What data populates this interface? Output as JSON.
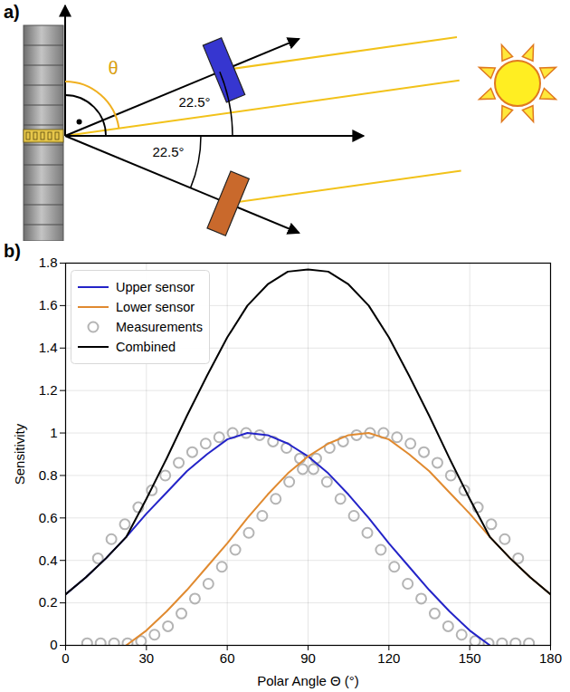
{
  "diagram": {
    "panel": "a)",
    "theta_label": "θ",
    "sensors": [
      {
        "angle": 22.5,
        "label": "22.5°",
        "color": "#3636d0"
      },
      {
        "angle": 22.5,
        "label": "22.5°",
        "color": "#c9692c"
      }
    ]
  },
  "chart_data": {
    "type": "line",
    "panel": "b)",
    "x_label": "Polar Angle Θ (°)",
    "y_label": "Sensitivity",
    "xlim": [
      0,
      180
    ],
    "xticks": [
      0,
      30,
      60,
      90,
      120,
      150,
      180
    ],
    "ylim": [
      0,
      1.8
    ],
    "yticks": [
      0,
      0.2,
      0.4,
      0.6,
      0.8,
      1,
      1.2,
      1.4,
      1.6,
      1.8
    ],
    "grid": true,
    "legend": "upper left",
    "series": [
      {
        "name": "Upper sensor",
        "type": "line",
        "color": "#2424c8",
        "line_style": "solid",
        "x": [
          0,
          7.5,
          15,
          22.5,
          30,
          37.5,
          45,
          52.5,
          60,
          67.5,
          75,
          82.5,
          90,
          97.5,
          105,
          112.5,
          120,
          127.5,
          135,
          142.5,
          150,
          157.5
        ],
        "values": [
          0.24,
          0.32,
          0.41,
          0.51,
          0.62,
          0.72,
          0.82,
          0.9,
          0.97,
          1,
          0.99,
          0.95,
          0.89,
          0.81,
          0.71,
          0.6,
          0.48,
          0.37,
          0.26,
          0.16,
          0.07,
          0
        ]
      },
      {
        "name": "Lower sensor",
        "type": "line",
        "color": "#e08a30",
        "line_style": "solid",
        "x": [
          22.5,
          30,
          37.5,
          45,
          52.5,
          60,
          67.5,
          75,
          82.5,
          90,
          97.5,
          105,
          112.5,
          120,
          127.5,
          135,
          142.5,
          150,
          157.5,
          165,
          172.5,
          180
        ],
        "values": [
          0,
          0.07,
          0.16,
          0.26,
          0.37,
          0.48,
          0.6,
          0.71,
          0.81,
          0.89,
          0.95,
          0.99,
          1,
          0.97,
          0.9,
          0.82,
          0.72,
          0.62,
          0.51,
          0.41,
          0.32,
          0.24
        ]
      },
      {
        "name": "Measurements",
        "type": "scatter",
        "color": "#b4b4b4",
        "marker": "circle",
        "x": [
          12,
          17,
          22,
          27,
          32,
          37,
          42,
          47,
          52,
          57,
          62,
          67,
          72,
          77,
          82,
          87,
          92,
          97,
          102,
          107,
          112,
          117,
          122,
          127,
          132,
          137,
          142,
          147,
          152,
          157,
          162,
          167,
          172,
          8,
          13,
          18,
          23,
          28,
          33,
          38,
          43,
          48,
          53,
          58,
          63,
          68,
          73,
          78,
          83,
          88,
          93,
          98,
          103,
          108,
          113,
          118,
          123,
          128,
          133,
          138,
          143,
          148,
          153,
          158,
          163,
          168
        ],
        "values": [
          0.41,
          0.5,
          0.57,
          0.65,
          0.73,
          0.8,
          0.86,
          0.91,
          0.95,
          0.98,
          1,
          1,
          0.99,
          0.96,
          0.93,
          0.88,
          0.83,
          0.77,
          0.69,
          0.61,
          0.53,
          0.45,
          0.37,
          0.29,
          0.22,
          0.15,
          0.09,
          0.05,
          0.02,
          0.01,
          0.01,
          0.01,
          0.01,
          0.01,
          0.01,
          0.01,
          0.01,
          0.02,
          0.05,
          0.09,
          0.15,
          0.22,
          0.29,
          0.37,
          0.45,
          0.53,
          0.61,
          0.69,
          0.77,
          0.83,
          0.88,
          0.93,
          0.96,
          0.99,
          1,
          1,
          0.98,
          0.95,
          0.91,
          0.86,
          0.8,
          0.73,
          0.65,
          0.57,
          0.5,
          0.41
        ]
      },
      {
        "name": "Combined",
        "type": "line",
        "color": "#000000",
        "line_style": "solid",
        "x": [
          0,
          7.5,
          15,
          22.5,
          30,
          37.5,
          45,
          52.5,
          60,
          67.5,
          75,
          82.5,
          90,
          97.5,
          105,
          112.5,
          120,
          127.5,
          135,
          142.5,
          150,
          157.5,
          165,
          172.5,
          180
        ],
        "values": [
          0.24,
          0.32,
          0.41,
          0.51,
          0.69,
          0.88,
          1.08,
          1.27,
          1.45,
          1.6,
          1.7,
          1.76,
          1.77,
          1.76,
          1.7,
          1.6,
          1.45,
          1.27,
          1.08,
          0.88,
          0.69,
          0.51,
          0.41,
          0.32,
          0.24
        ]
      }
    ]
  }
}
